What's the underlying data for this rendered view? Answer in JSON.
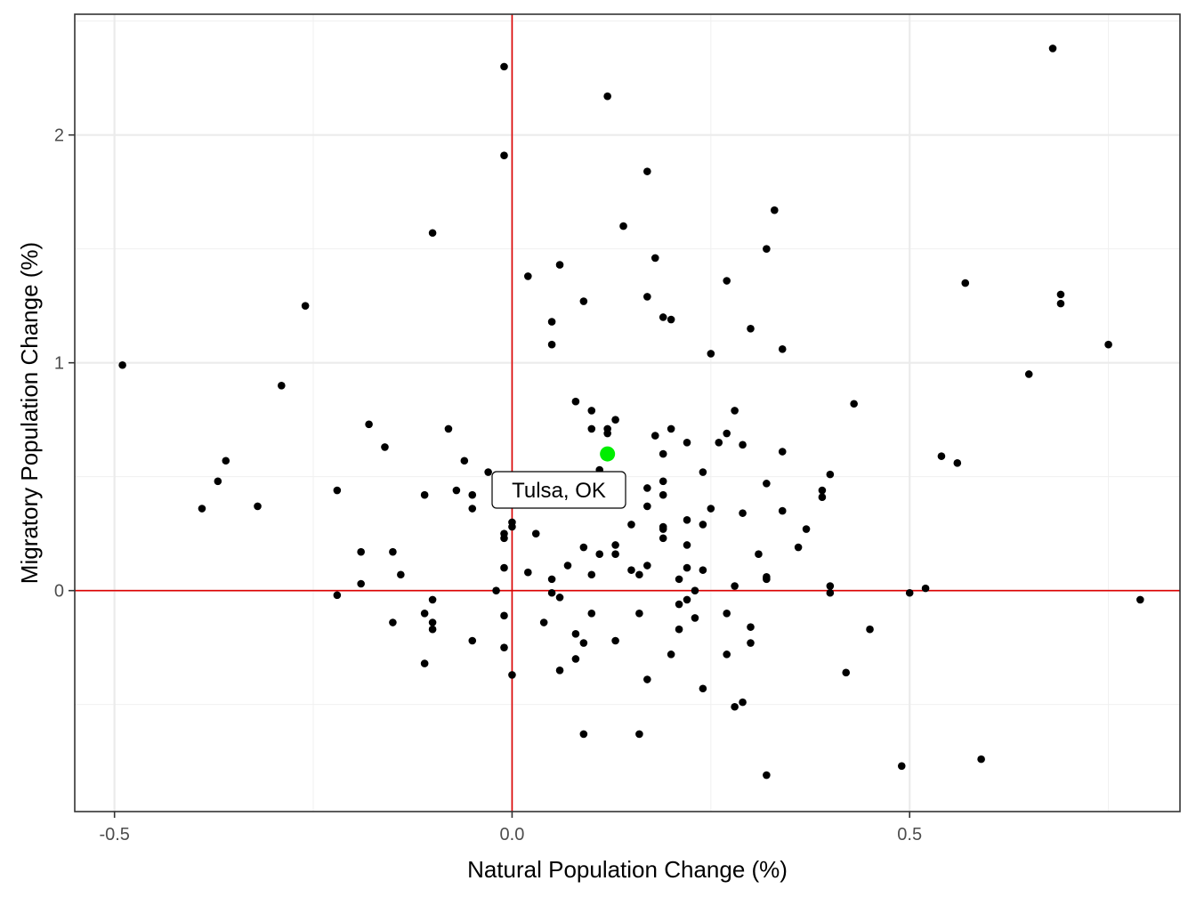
{
  "chart_data": {
    "type": "scatter",
    "title": "",
    "xlabel": "Natural Population Change (%)",
    "ylabel": "Migratory Population Change (%)",
    "xlim": [
      -0.55,
      0.84
    ],
    "ylim": [
      -0.97,
      2.53
    ],
    "x_ticks": [
      -0.5,
      0.0,
      0.5
    ],
    "x_tick_labels": [
      "-0.5",
      "0.0",
      "0.5"
    ],
    "y_ticks": [
      0,
      1,
      2
    ],
    "y_tick_labels": [
      "0",
      "1",
      "2"
    ],
    "grid": true,
    "reference_lines": {
      "x": 0,
      "y": 0,
      "color": "#dd0000"
    },
    "point_color": "#000000",
    "highlight": {
      "label": "Tulsa, OK",
      "x": 0.12,
      "y": 0.6,
      "color": "#00ee00"
    },
    "points": [
      [
        -0.49,
        0.99
      ],
      [
        -0.26,
        1.25
      ],
      [
        -0.29,
        0.9
      ],
      [
        -0.39,
        0.36
      ],
      [
        -0.37,
        0.48
      ],
      [
        -0.36,
        0.57
      ],
      [
        -0.32,
        0.37
      ],
      [
        -0.22,
        0.44
      ],
      [
        -0.22,
        -0.02
      ],
      [
        -0.19,
        0.17
      ],
      [
        -0.19,
        0.03
      ],
      [
        -0.18,
        0.73
      ],
      [
        -0.16,
        0.63
      ],
      [
        -0.15,
        0.17
      ],
      [
        -0.15,
        -0.14
      ],
      [
        -0.14,
        0.07
      ],
      [
        -0.11,
        0.42
      ],
      [
        -0.11,
        -0.1
      ],
      [
        -0.11,
        -0.32
      ],
      [
        -0.1,
        1.57
      ],
      [
        -0.1,
        -0.04
      ],
      [
        -0.1,
        -0.14
      ],
      [
        -0.1,
        -0.17
      ],
      [
        -0.08,
        0.71
      ],
      [
        -0.07,
        0.44
      ],
      [
        -0.06,
        0.57
      ],
      [
        -0.05,
        0.42
      ],
      [
        -0.05,
        0.36
      ],
      [
        -0.05,
        -0.22
      ],
      [
        -0.03,
        0.52
      ],
      [
        -0.02,
        0.0
      ],
      [
        -0.01,
        2.3
      ],
      [
        -0.01,
        1.91
      ],
      [
        -0.01,
        0.25
      ],
      [
        -0.01,
        0.23
      ],
      [
        -0.01,
        0.1
      ],
      [
        -0.01,
        -0.11
      ],
      [
        -0.01,
        -0.25
      ],
      [
        0.0,
        0.3
      ],
      [
        0.0,
        0.28
      ],
      [
        0.0,
        -0.37
      ],
      [
        0.02,
        1.38
      ],
      [
        0.02,
        0.08
      ],
      [
        0.03,
        0.25
      ],
      [
        0.04,
        -0.14
      ],
      [
        0.05,
        1.18
      ],
      [
        0.05,
        1.08
      ],
      [
        0.05,
        0.05
      ],
      [
        0.05,
        -0.01
      ],
      [
        0.06,
        1.43
      ],
      [
        0.06,
        -0.03
      ],
      [
        0.06,
        -0.35
      ],
      [
        0.07,
        0.11
      ],
      [
        0.08,
        0.83
      ],
      [
        0.08,
        -0.19
      ],
      [
        0.08,
        -0.3
      ],
      [
        0.09,
        1.27
      ],
      [
        0.09,
        0.38
      ],
      [
        0.09,
        0.19
      ],
      [
        0.09,
        -0.23
      ],
      [
        0.09,
        -0.63
      ],
      [
        0.1,
        0.79
      ],
      [
        0.1,
        0.71
      ],
      [
        0.1,
        0.07
      ],
      [
        0.1,
        -0.1
      ],
      [
        0.11,
        0.53
      ],
      [
        0.11,
        0.16
      ],
      [
        0.12,
        2.17
      ],
      [
        0.12,
        0.71
      ],
      [
        0.12,
        0.69
      ],
      [
        0.12,
        0.38
      ],
      [
        0.13,
        0.75
      ],
      [
        0.13,
        0.2
      ],
      [
        0.13,
        0.16
      ],
      [
        0.13,
        -0.22
      ],
      [
        0.14,
        1.6
      ],
      [
        0.15,
        0.29
      ],
      [
        0.15,
        0.09
      ],
      [
        0.16,
        0.07
      ],
      [
        0.16,
        -0.1
      ],
      [
        0.16,
        -0.63
      ],
      [
        0.17,
        1.84
      ],
      [
        0.17,
        1.29
      ],
      [
        0.17,
        0.45
      ],
      [
        0.17,
        0.37
      ],
      [
        0.17,
        0.11
      ],
      [
        0.17,
        -0.39
      ],
      [
        0.18,
        1.46
      ],
      [
        0.18,
        0.68
      ],
      [
        0.19,
        1.2
      ],
      [
        0.19,
        0.6
      ],
      [
        0.19,
        0.48
      ],
      [
        0.19,
        0.42
      ],
      [
        0.19,
        0.28
      ],
      [
        0.19,
        0.27
      ],
      [
        0.19,
        0.23
      ],
      [
        0.2,
        1.19
      ],
      [
        0.2,
        0.71
      ],
      [
        0.2,
        -0.28
      ],
      [
        0.21,
        0.05
      ],
      [
        0.21,
        -0.06
      ],
      [
        0.21,
        -0.17
      ],
      [
        0.22,
        0.65
      ],
      [
        0.22,
        0.31
      ],
      [
        0.22,
        0.2
      ],
      [
        0.22,
        0.1
      ],
      [
        0.22,
        -0.04
      ],
      [
        0.23,
        0.0
      ],
      [
        0.23,
        -0.12
      ],
      [
        0.24,
        0.52
      ],
      [
        0.24,
        0.29
      ],
      [
        0.24,
        0.09
      ],
      [
        0.24,
        -0.43
      ],
      [
        0.25,
        1.04
      ],
      [
        0.25,
        0.36
      ],
      [
        0.26,
        0.65
      ],
      [
        0.27,
        1.36
      ],
      [
        0.27,
        0.69
      ],
      [
        0.27,
        -0.1
      ],
      [
        0.27,
        -0.28
      ],
      [
        0.28,
        0.79
      ],
      [
        0.28,
        0.02
      ],
      [
        0.28,
        -0.51
      ],
      [
        0.29,
        0.64
      ],
      [
        0.29,
        0.34
      ],
      [
        0.29,
        -0.49
      ],
      [
        0.3,
        1.15
      ],
      [
        0.3,
        -0.16
      ],
      [
        0.3,
        -0.23
      ],
      [
        0.31,
        0.16
      ],
      [
        0.32,
        1.5
      ],
      [
        0.32,
        0.47
      ],
      [
        0.32,
        0.06
      ],
      [
        0.32,
        0.05
      ],
      [
        0.32,
        -0.81
      ],
      [
        0.33,
        1.67
      ],
      [
        0.34,
        1.06
      ],
      [
        0.34,
        0.61
      ],
      [
        0.34,
        0.35
      ],
      [
        0.36,
        0.19
      ],
      [
        0.37,
        0.27
      ],
      [
        0.39,
        0.44
      ],
      [
        0.39,
        0.41
      ],
      [
        0.4,
        0.51
      ],
      [
        0.4,
        0.02
      ],
      [
        0.4,
        -0.01
      ],
      [
        0.42,
        -0.36
      ],
      [
        0.43,
        0.82
      ],
      [
        0.45,
        -0.17
      ],
      [
        0.49,
        -0.77
      ],
      [
        0.5,
        -0.01
      ],
      [
        0.52,
        0.01
      ],
      [
        0.54,
        0.59
      ],
      [
        0.56,
        0.56
      ],
      [
        0.57,
        1.35
      ],
      [
        0.59,
        -0.74
      ],
      [
        0.65,
        0.95
      ],
      [
        0.68,
        2.38
      ],
      [
        0.69,
        1.3
      ],
      [
        0.69,
        1.26
      ],
      [
        0.75,
        1.08
      ],
      [
        0.79,
        -0.04
      ]
    ]
  }
}
